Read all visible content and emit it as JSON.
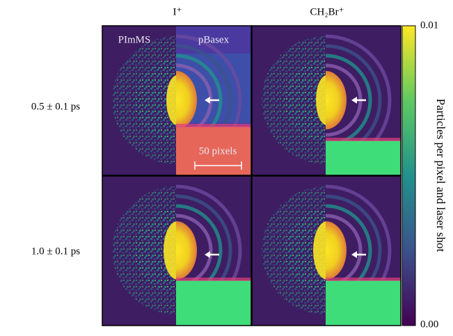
{
  "columns": [
    "I⁺",
    "CH₂Br⁺"
  ],
  "rows": [
    "0.5 ± 0.1 ps",
    "1.0 ± 0.1 ps"
  ],
  "panel_labels": {
    "left": "PImMS",
    "right": "pBasex"
  },
  "scale_bar": "50 pixels",
  "colorbar": {
    "label": "Particles per pixel and laser shot",
    "max": "0.01",
    "min": "0.00"
  }
}
